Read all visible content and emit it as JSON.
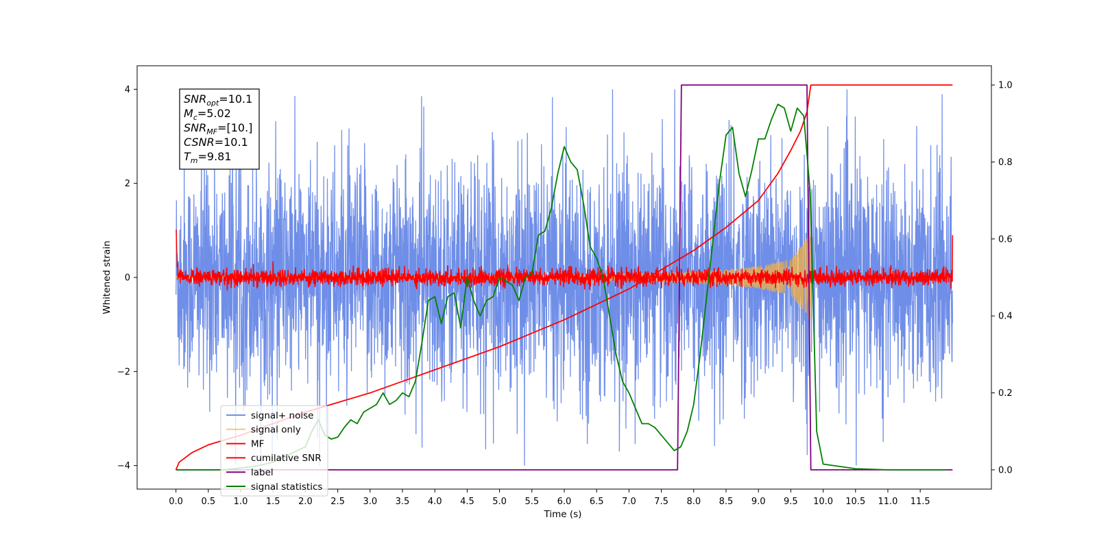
{
  "chart_data": {
    "type": "line",
    "title": "",
    "xlabel": "Time (s)",
    "ylabel": "Whitened strain",
    "y2label": "",
    "xlim": [
      -0.6,
      12.6
    ],
    "ylim": [
      -4.5,
      4.5
    ],
    "y2lim": [
      -0.05,
      1.05
    ],
    "x_ticks": [
      "0.0",
      "0.5",
      "1.0",
      "1.5",
      "2.0",
      "2.5",
      "3.0",
      "3.5",
      "4.0",
      "4.5",
      "5.0",
      "5.5",
      "6.0",
      "6.5",
      "7.0",
      "7.5",
      "8.0",
      "8.5",
      "9.0",
      "9.5",
      "10.0",
      "10.5",
      "11.0",
      "11.5"
    ],
    "y_ticks": [
      "4",
      "2",
      "0",
      "−2",
      "−4"
    ],
    "y_tick_values": [
      4,
      2,
      0,
      -2,
      -4
    ],
    "y2_ticks": [
      "1.0",
      "0.8",
      "0.6",
      "0.4",
      "0.2",
      "0.0"
    ],
    "y2_tick_values": [
      1.0,
      0.8,
      0.6,
      0.4,
      0.2,
      0.0
    ],
    "grid": false,
    "legend_position": "lower-left",
    "info_box": {
      "lines": [
        {
          "var": "SNR",
          "sub": "opt",
          "value": "=10.1"
        },
        {
          "var": "M",
          "sub": "c",
          "value": "=5.02"
        },
        {
          "var": "SNR",
          "sub": "MF",
          "value": "=[10.]"
        },
        {
          "var": "CSNR",
          "sub": "",
          "value": "=10.1"
        },
        {
          "var": "T",
          "sub": "m",
          "value": "=9.81"
        }
      ]
    },
    "series": [
      {
        "name": "signal+ noise",
        "color": "#6f8ee8",
        "axis": "left",
        "kind": "noise",
        "x_range": [
          0,
          12
        ],
        "amplitude_envelope": [
          [
            0,
            1.9
          ],
          [
            12,
            1.9
          ]
        ],
        "peak": 4.0
      },
      {
        "name": "signal only",
        "color": "#f5b041",
        "axis": "left",
        "kind": "chirp",
        "x_range": [
          0,
          9.81
        ],
        "envelope": [
          [
            0,
            0.02
          ],
          [
            2,
            0.03
          ],
          [
            4,
            0.04
          ],
          [
            6,
            0.06
          ],
          [
            7,
            0.08
          ],
          [
            8,
            0.12
          ],
          [
            8.5,
            0.17
          ],
          [
            9,
            0.24
          ],
          [
            9.5,
            0.38
          ],
          [
            9.81,
            0.95
          ]
        ]
      },
      {
        "name": "MF",
        "color": "#ff0000",
        "axis": "left",
        "kind": "noise",
        "x_range": [
          0,
          12
        ],
        "amplitude_envelope": [
          [
            0,
            0.1
          ],
          [
            12,
            0.1
          ]
        ],
        "edge_values": [
          1.0,
          0.9
        ]
      },
      {
        "name": "cumilative SNR",
        "color": "#ff0000",
        "axis": "right",
        "kind": "line",
        "x": [
          0,
          0.05,
          0.25,
          0.5,
          1.0,
          1.5,
          2.0,
          2.5,
          3.0,
          3.5,
          4.0,
          4.5,
          5.0,
          5.5,
          6.0,
          6.5,
          7.0,
          7.5,
          8.0,
          8.5,
          9.0,
          9.3,
          9.5,
          9.65,
          9.75,
          9.81,
          12.0
        ],
        "values": [
          0.0,
          0.02,
          0.045,
          0.065,
          0.09,
          0.12,
          0.15,
          0.175,
          0.2,
          0.23,
          0.26,
          0.29,
          0.32,
          0.355,
          0.39,
          0.43,
          0.47,
          0.52,
          0.57,
          0.63,
          0.7,
          0.77,
          0.83,
          0.88,
          0.93,
          1.0,
          1.0
        ]
      },
      {
        "name": "label",
        "color": "#800080",
        "axis": "right",
        "kind": "step",
        "x": [
          0,
          7.75,
          7.81,
          9.75,
          9.81,
          12.0
        ],
        "values": [
          0,
          0,
          1,
          1,
          0,
          0
        ]
      },
      {
        "name": "signal statistics",
        "color": "#008000",
        "axis": "right",
        "kind": "line",
        "x": [
          0,
          0.25,
          0.5,
          0.75,
          1.0,
          1.25,
          1.5,
          1.75,
          2.0,
          2.1,
          2.2,
          2.3,
          2.4,
          2.5,
          2.6,
          2.7,
          2.8,
          2.9,
          3.0,
          3.1,
          3.2,
          3.3,
          3.4,
          3.5,
          3.6,
          3.7,
          3.8,
          3.9,
          4.0,
          4.1,
          4.2,
          4.3,
          4.4,
          4.5,
          4.6,
          4.7,
          4.8,
          4.9,
          5.0,
          5.1,
          5.2,
          5.3,
          5.4,
          5.5,
          5.6,
          5.7,
          5.8,
          5.9,
          6.0,
          6.1,
          6.2,
          6.3,
          6.4,
          6.5,
          6.6,
          6.7,
          6.8,
          6.9,
          7.0,
          7.1,
          7.2,
          7.3,
          7.4,
          7.5,
          7.6,
          7.7,
          7.8,
          7.9,
          8.0,
          8.1,
          8.2,
          8.3,
          8.4,
          8.5,
          8.6,
          8.7,
          8.8,
          8.9,
          9.0,
          9.1,
          9.2,
          9.3,
          9.4,
          9.5,
          9.6,
          9.7,
          9.8,
          9.9,
          10.0,
          10.5,
          11.0,
          11.5,
          11.9
        ],
        "values": [
          0.0,
          0.0,
          0.0,
          0.0,
          0.005,
          0.01,
          0.02,
          0.04,
          0.06,
          0.1,
          0.13,
          0.09,
          0.08,
          0.085,
          0.11,
          0.13,
          0.12,
          0.15,
          0.16,
          0.17,
          0.2,
          0.17,
          0.18,
          0.2,
          0.19,
          0.23,
          0.33,
          0.44,
          0.45,
          0.38,
          0.45,
          0.46,
          0.37,
          0.5,
          0.44,
          0.4,
          0.44,
          0.45,
          0.5,
          0.49,
          0.48,
          0.44,
          0.5,
          0.51,
          0.61,
          0.62,
          0.68,
          0.77,
          0.84,
          0.8,
          0.78,
          0.69,
          0.58,
          0.55,
          0.5,
          0.4,
          0.3,
          0.23,
          0.2,
          0.16,
          0.12,
          0.12,
          0.11,
          0.09,
          0.07,
          0.05,
          0.06,
          0.1,
          0.17,
          0.3,
          0.45,
          0.6,
          0.75,
          0.87,
          0.89,
          0.77,
          0.71,
          0.78,
          0.86,
          0.86,
          0.91,
          0.95,
          0.94,
          0.88,
          0.94,
          0.92,
          0.72,
          0.1,
          0.015,
          0.003,
          0.0,
          0.0,
          0.0
        ]
      }
    ]
  }
}
